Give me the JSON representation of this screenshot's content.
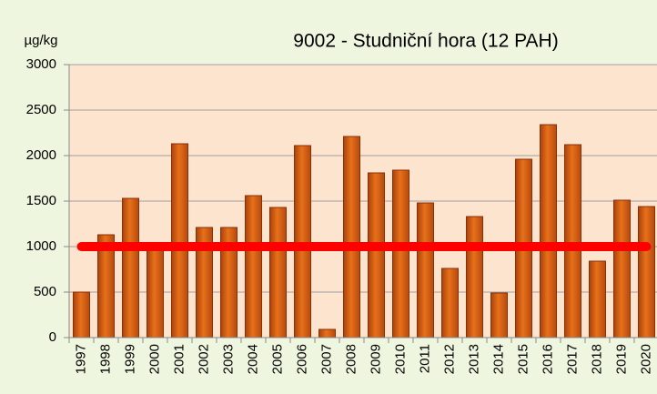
{
  "chart_data": {
    "type": "bar",
    "title": "9002 - Studniční hora (12 PAH)",
    "y_label": "µg/kg",
    "categories": [
      "1997",
      "1998",
      "1999",
      "2000",
      "2001",
      "2002",
      "2003",
      "2004",
      "2005",
      "2006",
      "2007",
      "2008",
      "2009",
      "2010",
      "2011",
      "2012",
      "2013",
      "2014",
      "2015",
      "2016",
      "2017",
      "2018",
      "2019",
      "2020"
    ],
    "values": [
      500,
      1130,
      1530,
      1000,
      2130,
      1210,
      1210,
      1560,
      1430,
      2110,
      90,
      2210,
      1810,
      1840,
      1480,
      760,
      1330,
      490,
      1960,
      2340,
      2120,
      840,
      1510,
      1440
    ],
    "color": "#e8701a",
    "ylim": [
      0,
      3000
    ],
    "yticks": [
      0,
      500,
      1000,
      1500,
      2000,
      2500,
      3000
    ],
    "grid": true,
    "reference_line": {
      "value": 1000,
      "color": "#ff0000"
    }
  }
}
